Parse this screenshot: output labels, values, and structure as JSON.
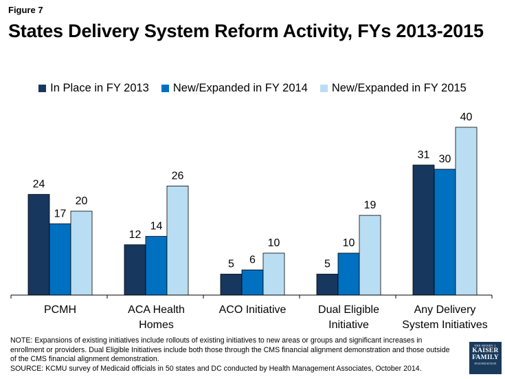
{
  "header": {
    "figure_label": "Figure 7",
    "title": "States Delivery System Reform Activity, FYs 2013-2015"
  },
  "chart_data": {
    "type": "bar",
    "title": "States Delivery System Reform Activity, FYs 2013-2015",
    "categories": [
      [
        "PCMH"
      ],
      [
        "ACA Health",
        "Homes"
      ],
      [
        "ACO Initiative"
      ],
      [
        "Dual Eligible",
        "Initiative"
      ],
      [
        "Any Delivery",
        "System Initiatives"
      ]
    ],
    "series": [
      {
        "name": "In Place in FY 2013",
        "color": "#17375e",
        "values": [
          24,
          12,
          5,
          5,
          31
        ]
      },
      {
        "name": "New/Expanded in FY 2014",
        "color": "#0070c0",
        "values": [
          17,
          14,
          6,
          10,
          30
        ]
      },
      {
        "name": "New/Expanded in FY 2015",
        "color": "#b9def3",
        "values": [
          20,
          26,
          10,
          19,
          40
        ]
      }
    ],
    "ylim": [
      0,
      40
    ],
    "xlabel": "",
    "ylabel": "",
    "legend_position": "top"
  },
  "footer": {
    "note": "NOTE: Expansions of existing initiatives include rollouts of existing initiatives to new areas or groups and significant increases in enrollment or providers. Dual Eligible Initiatives include both those through the CMS financial alignment demonstration and those outside of the CMS financial alignment demonstration.",
    "source": "SOURCE: KCMU survey of Medicaid officials in 50 states and DC conducted by Health Management Associates, October 2014."
  },
  "logo": {
    "line1": "THE HENRY J.",
    "line2": "KAISER",
    "line3": "FAMILY",
    "line4": "FOUNDATION"
  }
}
